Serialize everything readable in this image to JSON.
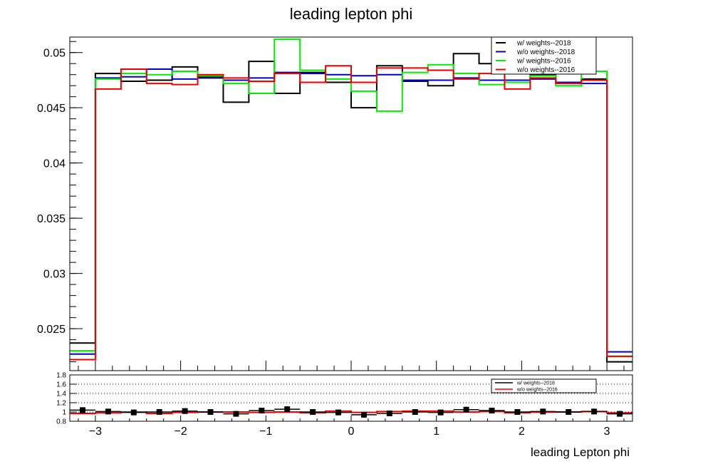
{
  "chart_data": [
    {
      "type": "line",
      "style": "step-histogram",
      "title": "leading lepton phi",
      "xlabel": "",
      "ylabel": "",
      "xlim": [
        -3.3,
        3.3
      ],
      "ylim": [
        0.0212,
        0.0514
      ],
      "x_ticks": [
        -3,
        -2,
        -1,
        0,
        1,
        2,
        3
      ],
      "x_tick_labels": [
        "−3",
        "−2",
        "−1",
        "0",
        "1",
        "2",
        "3"
      ],
      "y_ticks": [
        0.025,
        0.03,
        0.035,
        0.04,
        0.045,
        0.05
      ],
      "y_tick_labels": [
        "0.025",
        "0.03",
        "0.035",
        "0.04",
        "0.045",
        "0.05"
      ],
      "bin_edges": [
        -3.3,
        -3.0,
        -2.7,
        -2.4,
        -2.1,
        -1.8,
        -1.5,
        -1.2,
        -0.9,
        -0.6,
        -0.3,
        0.0,
        0.3,
        0.6,
        0.9,
        1.2,
        1.5,
        1.8,
        2.1,
        2.4,
        2.7,
        3.0,
        3.3
      ],
      "legend": {
        "position": "top-right"
      },
      "series": [
        {
          "name": "w/ weights--2018",
          "color": "#000000",
          "values": [
            0.0237,
            0.0481,
            0.0474,
            0.0475,
            0.0487,
            0.0477,
            0.0455,
            0.0492,
            0.0463,
            0.0482,
            0.0473,
            0.045,
            0.0488,
            0.0474,
            0.047,
            0.0499,
            0.049,
            0.0475,
            0.048,
            0.0473,
            0.0476,
            0.022
          ]
        },
        {
          "name": "w/o weights--2018",
          "color": "#0000cc",
          "values": [
            0.0227,
            0.0477,
            0.0478,
            0.0485,
            0.0476,
            0.0478,
            0.0475,
            0.0477,
            0.0482,
            0.0481,
            0.048,
            0.0479,
            0.048,
            0.0475,
            0.0475,
            0.0477,
            0.0475,
            0.0475,
            0.0476,
            0.0473,
            0.0472,
            0.0229
          ]
        },
        {
          "name": "w/ weights--2016",
          "color": "#00ee00",
          "values": [
            0.023,
            0.0476,
            0.0481,
            0.048,
            0.0483,
            0.0479,
            0.0472,
            0.0463,
            0.0512,
            0.0484,
            0.0476,
            0.0465,
            0.0447,
            0.0482,
            0.0489,
            0.0481,
            0.0471,
            0.0473,
            0.0479,
            0.047,
            0.0483,
            0.0225
          ]
        },
        {
          "name": "w/o weights--2016",
          "color": "#ee0000",
          "values": [
            0.0222,
            0.0467,
            0.0485,
            0.0472,
            0.0471,
            0.048,
            0.0477,
            0.0474,
            0.0481,
            0.0473,
            0.0488,
            0.0473,
            0.0486,
            0.0486,
            0.0484,
            0.0476,
            0.0481,
            0.0467,
            0.0477,
            0.0472,
            0.0475,
            0.0225
          ]
        }
      ]
    },
    {
      "type": "line",
      "style": "ratio-panel",
      "title": "",
      "xlabel": "leading Lepton phi",
      "ylabel": "",
      "xlim": [
        -3.3,
        3.3
      ],
      "ylim": [
        0.8,
        1.8
      ],
      "y_ticks": [
        0.8,
        1.0,
        1.2,
        1.4,
        1.6,
        1.8
      ],
      "y_tick_labels": [
        "0.8",
        "1",
        "1.2",
        "1.4",
        "1.6",
        "1.8"
      ],
      "dotted_gridlines": [
        1.0,
        1.2,
        1.4,
        1.6
      ],
      "x_ticks": [
        -3,
        -2,
        -1,
        0,
        1,
        2,
        3
      ],
      "x_tick_labels": [
        "−3",
        "−2",
        "−1",
        "0",
        "1",
        "2",
        "3"
      ],
      "legend": {
        "position": "top-right"
      },
      "series": [
        {
          "name": "w/ weights--2018",
          "color": "#000000",
          "marker": "square",
          "values": [
            1.04,
            1.01,
            0.99,
            1.0,
            1.02,
            1.0,
            0.96,
            1.03,
            1.06,
            1.0,
            0.99,
            0.94,
            0.97,
            1.0,
            0.99,
            1.05,
            1.03,
            1.0,
            1.01,
            1.0,
            1.01,
            0.96
          ]
        },
        {
          "name": "w/o weights--2016",
          "color": "#ee0000",
          "values": [
            0.97,
            0.98,
            1.0,
            0.97,
            0.99,
            1.0,
            1.0,
            0.99,
            1.0,
            0.98,
            1.02,
            0.99,
            1.01,
            1.02,
            1.02,
            1.0,
            1.01,
            0.98,
            1.0,
            1.0,
            1.01,
            0.98
          ]
        }
      ]
    }
  ]
}
